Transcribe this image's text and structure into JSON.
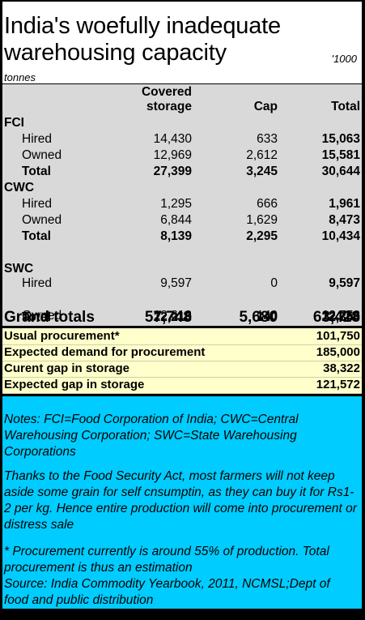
{
  "title": "India's woefully inadequate warehousing capacity",
  "unit_top": "'1000",
  "unit_bottom": "tonnes",
  "headers": {
    "covered": [
      "Covered",
      "storage"
    ],
    "cap": "Cap",
    "total": "Total"
  },
  "sections": [
    {
      "name": "FCI",
      "rows": [
        {
          "label": "Hired",
          "covered": "14,430",
          "cap": "633",
          "total": "15,063"
        },
        {
          "label": "Owned",
          "covered": "12,969",
          "cap": "2,612",
          "total": "15,581"
        },
        {
          "label": "Total",
          "covered": "27,399",
          "cap": "3,245",
          "total": "30,644"
        }
      ]
    },
    {
      "name": "CWC",
      "rows": [
        {
          "label": "Hired",
          "covered": "1,295",
          "cap": "666",
          "total": "1,961"
        },
        {
          "label": "Owned",
          "covered": "6,844",
          "cap": "1,629",
          "total": "8,473"
        },
        {
          "label": "Total",
          "covered": "8,139",
          "cap": "2,295",
          "total": "10,434"
        }
      ]
    },
    {
      "name": "SWC",
      "rows": [
        {
          "label": "Hired",
          "covered": "9,597",
          "cap": "0",
          "total": "9,597"
        },
        {
          "label": "Owned",
          "covered": "12,613",
          "cap": "140",
          "total": "12,753"
        },
        {
          "label": "Total",
          "covered": "22,210",
          "cap": "140",
          "total": "22,350"
        }
      ]
    }
  ],
  "grand": {
    "label": "Grand totals",
    "covered": "57,748",
    "cap": "5,680",
    "total": "63,428"
  },
  "summary": [
    {
      "label": "Usual procurement*",
      "value": "101,750"
    },
    {
      "label": "Expected demand for procurement",
      "value": "185,000"
    },
    {
      "label": "Curent gap in storage",
      "value": "38,322"
    },
    {
      "label": "Expected gap in storage",
      "value": "121,572"
    }
  ],
  "notes": {
    "n1": "Notes: FCI=Food Corporation of India; CWC=Central Warehousing Corporation; SWC=State Warehousing Corporations",
    "n2": "Thanks to the Food Security Act, most farmers will not keep aside some grain for self cnsumptin, as they can buy it for Rs1-2 per kg.  Hence entire production will come into procurement or distress sale",
    "n3": "* Procurement currently is around 55% of production. Total procurement is thus an estimation",
    "n4": "Source: India Commodity Yearbook, 2011, NCMSL;Dept of food and public distribution"
  },
  "colors": {
    "table_bg": "#d9d9d9",
    "summary_bg": "#ffffcc",
    "notes_bg": "#00ccff",
    "border": "#000000"
  }
}
